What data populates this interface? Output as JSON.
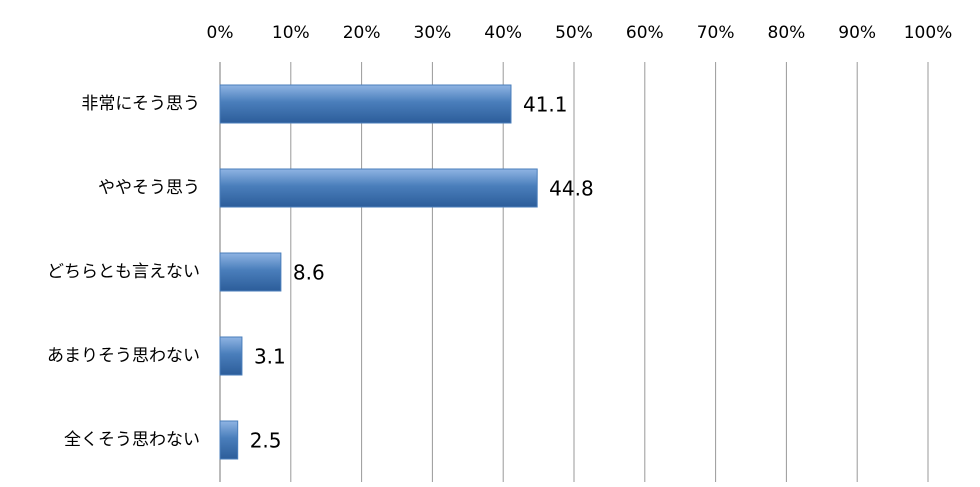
{
  "chart_data": {
    "type": "bar",
    "orientation": "horizontal",
    "categories": [
      "非常にそう思う",
      "ややそう思う",
      "どちらとも言えない",
      "あまりそう思わない",
      "全くそう思わない"
    ],
    "values": [
      41.1,
      44.8,
      8.6,
      3.1,
      2.5
    ],
    "color": "#4a7ebb",
    "xlim": [
      0,
      100
    ],
    "xticks": [
      {
        "value": 0,
        "label": "0%"
      },
      {
        "value": 10,
        "label": "10%"
      },
      {
        "value": 20,
        "label": "20%"
      },
      {
        "value": 30,
        "label": "30%"
      },
      {
        "value": 40,
        "label": "40%"
      },
      {
        "value": 50,
        "label": "50%"
      },
      {
        "value": 60,
        "label": "60%"
      },
      {
        "value": 70,
        "label": "70%"
      },
      {
        "value": 80,
        "label": "80%"
      },
      {
        "value": 90,
        "label": "90%"
      },
      {
        "value": 100,
        "label": "100%"
      }
    ],
    "grid": true
  }
}
